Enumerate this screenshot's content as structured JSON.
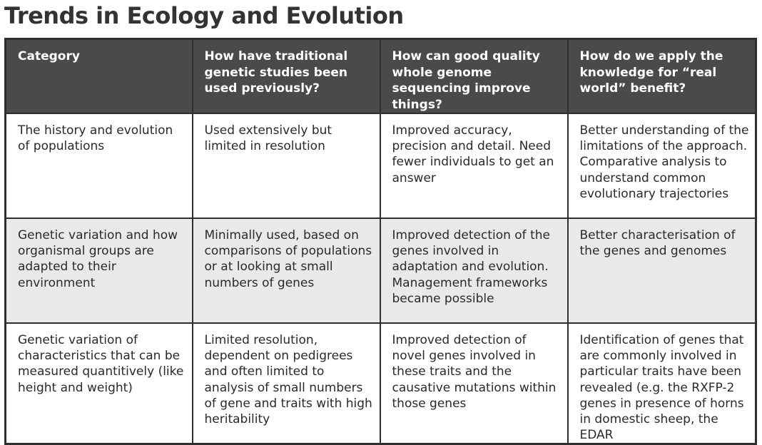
{
  "title": "Trends in Ecology and Evolution",
  "table": {
    "headers": [
      "Category",
      "How have traditional genetic studies been used previously?",
      "How can good quality whole genome sequencing improve things?",
      "How do we apply the knowledge for “real world” benefit?"
    ],
    "rows": [
      [
        "The history and evolution of populations",
        "Used extensively but limited in resolution",
        "Improved accuracy, precision and detail. Need fewer individuals to get an answer",
        "Better understanding of the limitations of the approach. Comparative analysis to understand common evolutionary trajectories"
      ],
      [
        "Genetic variation and how organismal groups are adapted to their environment",
        "Minimally used, based on comparisons of populations or at looking at small numbers of genes",
        "Improved detection of the genes involved in adaptation and evolution. Management frameworks became possible",
        "Better characterisation of the genes and genomes"
      ],
      [
        "Genetic variation of characteristics that can be measured quantitively (like height and weight)",
        "Limited resolution, dependent on pedigrees and often limited to analysis of small numbers of gene and traits with high heritability",
        "Improved detection of novel genes involved in these traits and the causative mutations within those genes",
        "Identification of genes that are commonly involved in particular traits have been revealed (e.g. the RXFP-2 genes in presence of horns in domestic sheep, the EDAR"
      ]
    ]
  },
  "colors": {
    "header_bg": "#4a4a4a",
    "header_text": "#ffffff",
    "border": "#2f2f2f",
    "shaded_row": "#e9e9e9",
    "title_text": "#333333"
  }
}
